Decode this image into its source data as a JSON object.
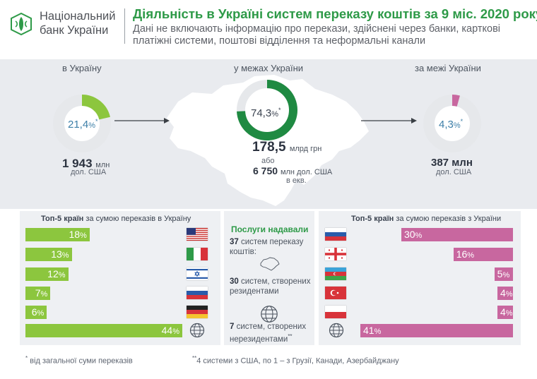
{
  "header": {
    "logo_line1": "Національний",
    "logo_line2": "банк України",
    "title": "Діяльність в Україні систем переказу коштів за 9 міс. 2020 року",
    "subtitle": "Дані не включають інформацію про перекази, здійснені через банки, карткові платіжні системи, поштові відділення та неформальні канали"
  },
  "colors": {
    "green": "#8cc63e",
    "dark_green": "#1f8a42",
    "pink": "#c8679f",
    "donut_gray": "#e6e8eb"
  },
  "inbound": {
    "label": "в Україну",
    "share": 21.4,
    "share_text": "21,4",
    "pct": "%",
    "star": "*",
    "amount": "1 943",
    "amount_unit": "млн",
    "currency": "дол. США"
  },
  "domestic": {
    "label": "у межах України",
    "share": 74.3,
    "share_text": "74,3",
    "pct": "%",
    "star": "*",
    "amount": "178,5",
    "amount_unit": "млрд грн",
    "or": "або",
    "amount_usd": "6 750",
    "amount_usd_unit": "млн дол. США",
    "equiv": "в екв."
  },
  "outbound": {
    "label": "за межі України",
    "share": 4.3,
    "share_text": "4,3",
    "pct": "%",
    "star": "*",
    "amount": "387 млн",
    "currency": "дол. США"
  },
  "chart_data": [
    {
      "type": "bar",
      "title_bold": "Топ-5 країн",
      "title_rest": " за сумою переказів в Україну",
      "categories": [
        "США",
        "Італія",
        "Ізраїль",
        "Росія",
        "Німеччина",
        "Інші"
      ],
      "values": [
        18,
        13,
        12,
        7,
        6,
        44
      ],
      "labels": [
        "18",
        "13",
        "12",
        "7",
        "6",
        "44"
      ],
      "unit": "%",
      "color": "#8cc63e"
    },
    {
      "type": "bar",
      "title_bold": "Топ-5 країн",
      "title_rest": " за сумою переказів з України",
      "categories": [
        "Росія",
        "Грузія",
        "Азербайджан",
        "Туреччина",
        "Польща",
        "Інші"
      ],
      "values": [
        30,
        16,
        5,
        4,
        4,
        41
      ],
      "labels": [
        "30",
        "16",
        "5",
        "4",
        "4",
        "41"
      ],
      "unit": "%",
      "color": "#c8679f"
    }
  ],
  "icons": [
    "nbu-logo-icon",
    "arrow-right-icon",
    "ukraine-map",
    "usa-flag",
    "italy-flag",
    "israel-flag",
    "russia-flag",
    "germany-flag",
    "globe-icon",
    "georgia-flag",
    "azerbaijan-flag",
    "turkey-flag",
    "poland-flag"
  ],
  "services": {
    "title": "Послуги надавали",
    "total_num": "37",
    "total_text": " систем переказу коштів:",
    "resident_num": "30",
    "resident_text": " систем, створених резидентами",
    "nonresident_num": "7",
    "nonresident_text": " систем, створених нерезидентами",
    "nonresident_mark": "**"
  },
  "footnotes": {
    "star_mark": "*",
    "star_text": " від загальної суми переказів",
    "dstar_mark": "**",
    "dstar_text": "4 системи з США, по 1 – з Грузії, Канади, Азербайджану"
  }
}
